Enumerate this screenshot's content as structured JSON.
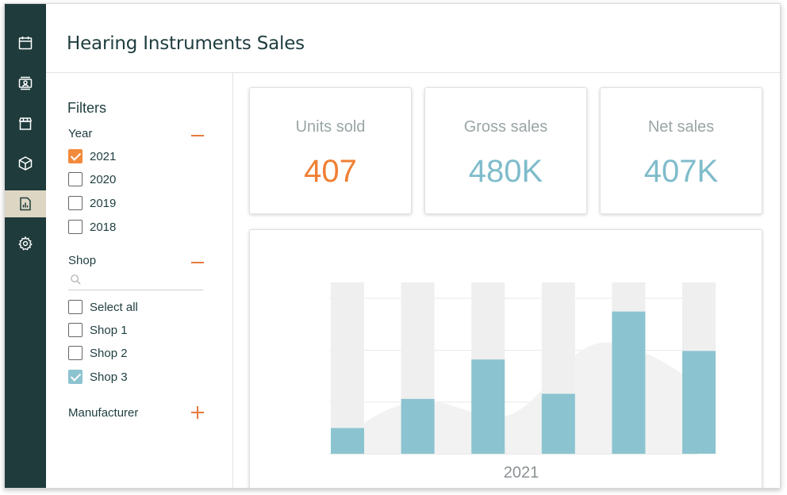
{
  "app": {
    "title": "Hearing Instruments Sales"
  },
  "nav": {
    "items": [
      {
        "icon": "calendar-icon",
        "active": false
      },
      {
        "icon": "contact-card-icon",
        "active": false
      },
      {
        "icon": "store-icon",
        "active": false
      },
      {
        "icon": "box-icon",
        "active": false
      },
      {
        "icon": "report-icon",
        "active": true
      },
      {
        "icon": "gear-icon",
        "active": false
      }
    ]
  },
  "filters": {
    "title": "Filters",
    "year": {
      "label": "Year",
      "options": [
        {
          "label": "2021",
          "checked": true
        },
        {
          "label": "2020",
          "checked": false
        },
        {
          "label": "2019",
          "checked": false
        },
        {
          "label": "2018",
          "checked": false
        }
      ]
    },
    "shop": {
      "label": "Shop",
      "search_value": "",
      "options": [
        {
          "label": "Select all",
          "checked": false
        },
        {
          "label": "Shop 1",
          "checked": false
        },
        {
          "label": "Shop 2",
          "checked": false
        },
        {
          "label": "Shop 3",
          "checked": true
        }
      ]
    },
    "manufacturer": {
      "label": "Manufacturer"
    }
  },
  "kpis": [
    {
      "label": "Units sold",
      "value": "407",
      "color": "#ef7f33"
    },
    {
      "label": "Gross sales",
      "value": "480K",
      "color": "#7fbccb"
    },
    {
      "label": "Net sales",
      "value": "407K",
      "color": "#7fbccb"
    }
  ],
  "colors": {
    "sidebar": "#1f3b3c",
    "accent_orange": "#ef7f33",
    "accent_blue": "#8bc4d0",
    "bar_background": "#efefef",
    "area_shape": "#f2f2f2",
    "active_nav": "#ddd6c3"
  },
  "chart_data": {
    "type": "bar",
    "xlabel": "2021",
    "ylim": [
      0,
      100
    ],
    "grid": true,
    "series": [
      {
        "values": [
          15,
          32,
          55,
          35,
          83,
          60
        ]
      }
    ]
  }
}
